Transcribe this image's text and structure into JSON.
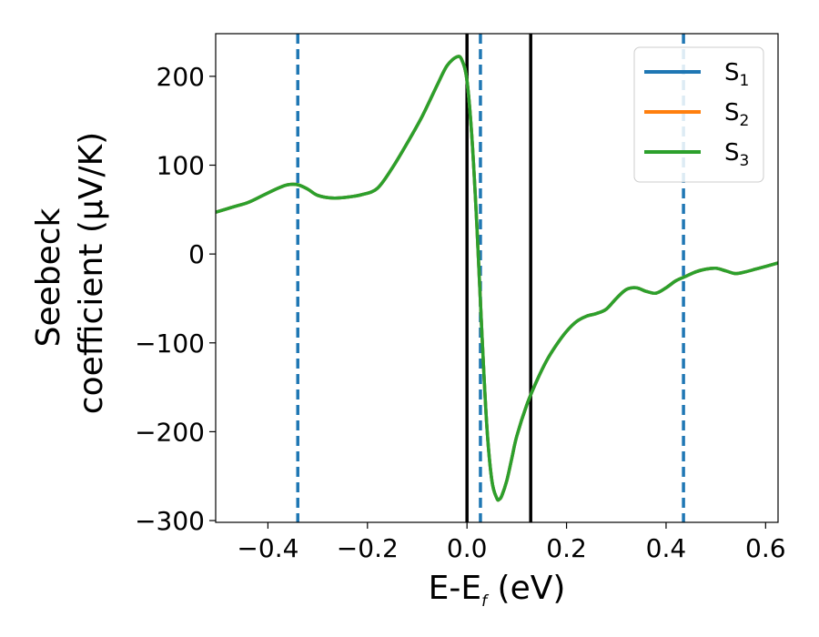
{
  "chart_data": {
    "type": "line",
    "xlabel": {
      "main": "E-E",
      "sub": "f",
      "unit": " (eV)"
    },
    "ylabel": {
      "line1": "Seebeck",
      "line2": "coefficient  (μV/K)"
    },
    "xlim": [
      -0.505,
      0.625
    ],
    "ylim": [
      -302,
      248
    ],
    "xticks": [
      -0.4,
      -0.2,
      0.0,
      0.2,
      0.4,
      0.6
    ],
    "xtick_labels": [
      "−0.4",
      "−0.2",
      "0.0",
      "0.2",
      "0.4",
      "0.6"
    ],
    "yticks": [
      200,
      100,
      0,
      -100,
      -200,
      -300
    ],
    "ytick_labels": [
      "200",
      "100",
      "0",
      "−100",
      "−200",
      "−300"
    ],
    "grid": false,
    "legend_position": "top-right",
    "series": [
      {
        "name": "S",
        "sub": "1",
        "color": "#1f77b4"
      },
      {
        "name": "S",
        "sub": "2",
        "color": "#ff7f0e"
      },
      {
        "name": "S",
        "sub": "3",
        "color": "#2ca02c"
      }
    ],
    "x": [
      -0.505,
      -0.47,
      -0.44,
      -0.41,
      -0.38,
      -0.36,
      -0.34,
      -0.32,
      -0.3,
      -0.27,
      -0.24,
      -0.21,
      -0.18,
      -0.15,
      -0.12,
      -0.09,
      -0.06,
      -0.04,
      -0.02,
      -0.01,
      0.0,
      0.01,
      0.02,
      0.03,
      0.04,
      0.05,
      0.06,
      0.065,
      0.07,
      0.08,
      0.09,
      0.1,
      0.12,
      0.14,
      0.16,
      0.18,
      0.2,
      0.22,
      0.24,
      0.26,
      0.28,
      0.3,
      0.32,
      0.34,
      0.36,
      0.38,
      0.4,
      0.42,
      0.44,
      0.46,
      0.48,
      0.5,
      0.52,
      0.54,
      0.56,
      0.58,
      0.6,
      0.625
    ],
    "y": [
      47,
      53,
      58,
      66,
      74,
      78,
      78,
      73,
      66,
      63,
      64,
      67,
      74,
      97,
      125,
      155,
      190,
      212,
      222,
      218,
      195,
      130,
      30,
      -90,
      -195,
      -255,
      -275,
      -276,
      -272,
      -255,
      -230,
      -205,
      -170,
      -143,
      -120,
      -102,
      -87,
      -76,
      -70,
      -67,
      -62,
      -50,
      -40,
      -38,
      -42,
      -44,
      -38,
      -30,
      -25,
      -20,
      -17,
      -16,
      -19,
      -22,
      -20,
      -17,
      -14,
      -10
    ],
    "vlines_dashed": {
      "color": "#1f77b4",
      "x": [
        -0.34,
        0.027,
        0.435
      ]
    },
    "vlines_solid": {
      "color": "#000000",
      "x": [
        0.0,
        0.128
      ]
    }
  }
}
